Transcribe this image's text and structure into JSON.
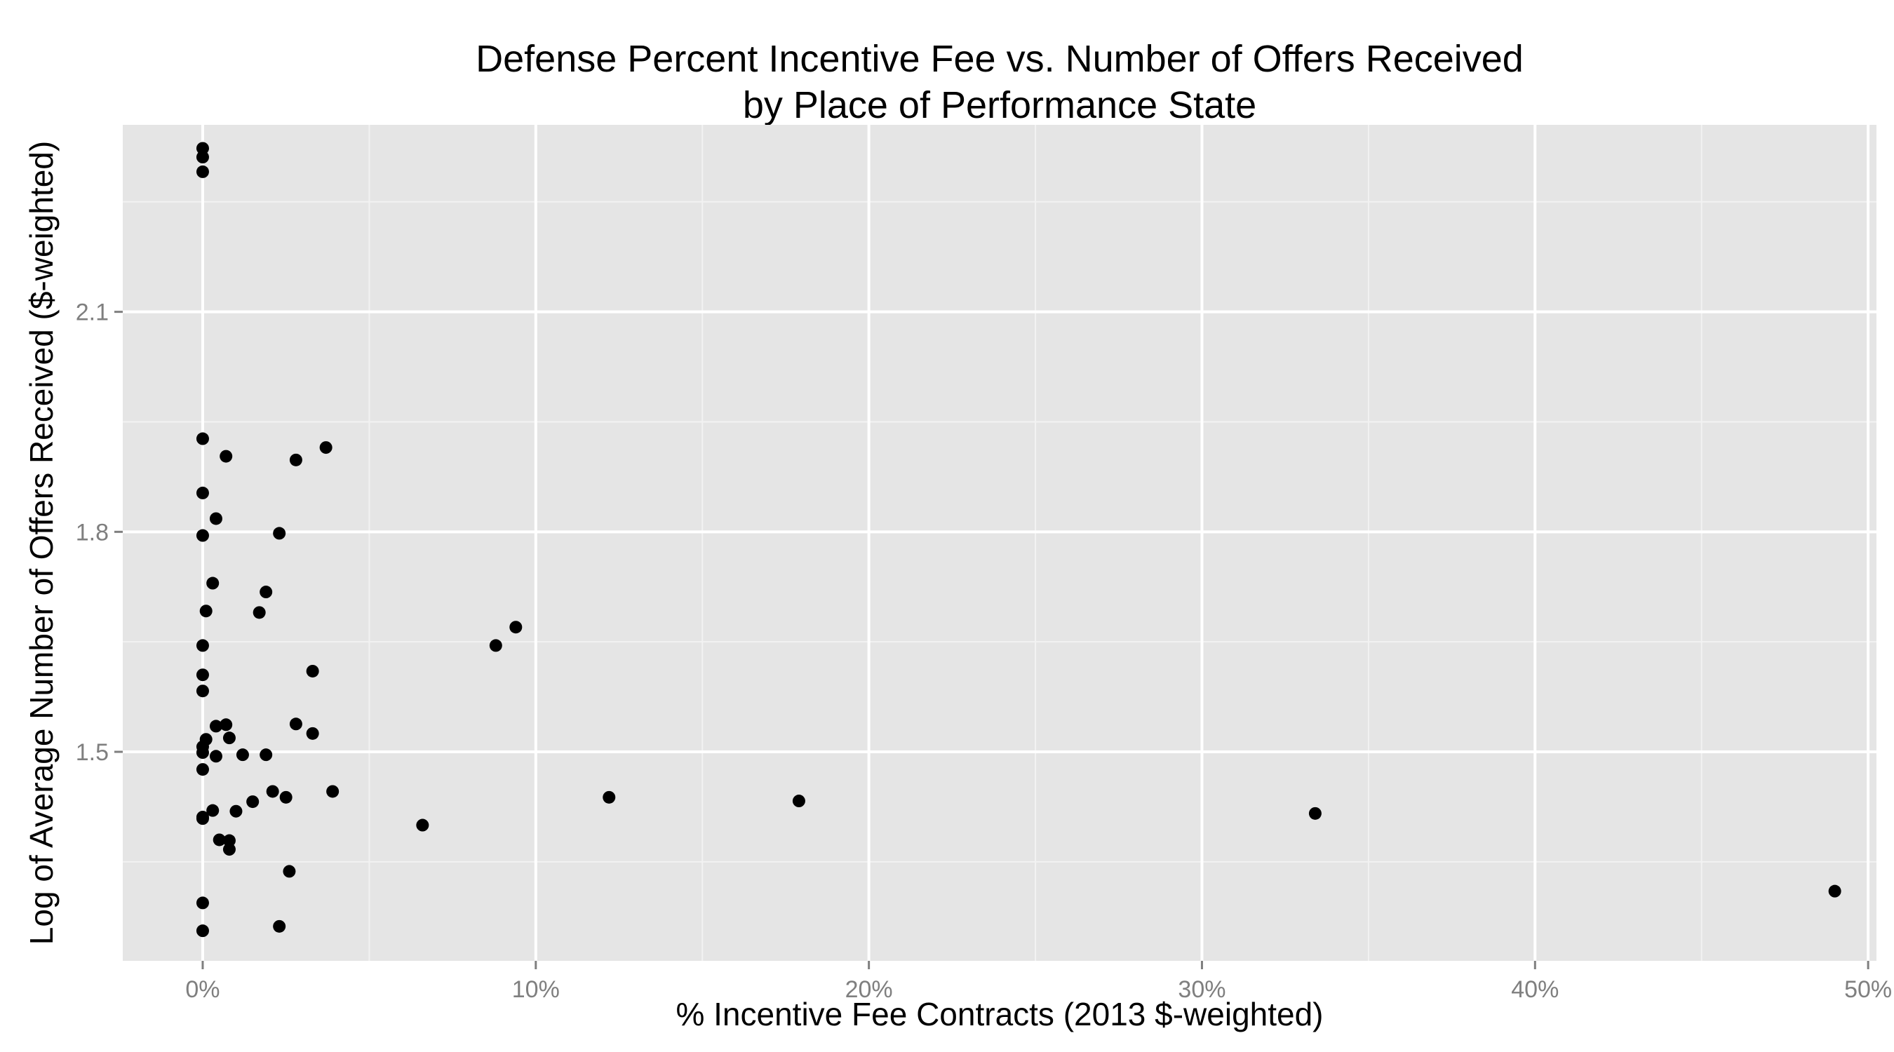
{
  "chart_data": {
    "type": "scatter",
    "title": "Defense Percent Incentive Fee vs. Number of Offers Received",
    "subtitle": "by Place of Performance State",
    "xlabel": "% Incentive Fee Contracts (2013 $-weighted)",
    "ylabel": "Log of Average Number of Offers Received ($-weighted)",
    "xlim": [
      -0.024,
      0.5025
    ],
    "ylim": [
      1.215,
      2.355
    ],
    "x_ticks": [
      0,
      0.1,
      0.2,
      0.3,
      0.4,
      0.5
    ],
    "x_tick_labels": [
      "0%",
      "10%",
      "20%",
      "30%",
      "40%",
      "50%"
    ],
    "y_ticks": [
      1.5,
      1.8,
      2.1
    ],
    "y_tick_labels": [
      "1.5",
      "1.8",
      "2.1"
    ],
    "grid": true,
    "background": "#e5e5e5",
    "point_color": "#000000",
    "points": [
      {
        "x": 0.0,
        "y": 2.323
      },
      {
        "x": 0.0,
        "y": 2.311
      },
      {
        "x": 0.0,
        "y": 2.291
      },
      {
        "x": 0.0,
        "y": 1.927
      },
      {
        "x": 0.0,
        "y": 1.853
      },
      {
        "x": 0.0,
        "y": 1.795
      },
      {
        "x": 0.0,
        "y": 1.645
      },
      {
        "x": 0.0,
        "y": 1.605
      },
      {
        "x": 0.0,
        "y": 1.583
      },
      {
        "x": 0.0,
        "y": 1.507
      },
      {
        "x": 0.0,
        "y": 1.499
      },
      {
        "x": 0.0,
        "y": 1.476
      },
      {
        "x": 0.0,
        "y": 1.411
      },
      {
        "x": 0.0,
        "y": 1.409
      },
      {
        "x": 0.0,
        "y": 1.294
      },
      {
        "x": 0.0,
        "y": 1.256
      },
      {
        "x": 0.001,
        "y": 1.517
      },
      {
        "x": 0.001,
        "y": 1.692
      },
      {
        "x": 0.003,
        "y": 1.73
      },
      {
        "x": 0.003,
        "y": 1.42
      },
      {
        "x": 0.004,
        "y": 1.818
      },
      {
        "x": 0.004,
        "y": 1.535
      },
      {
        "x": 0.004,
        "y": 1.494
      },
      {
        "x": 0.005,
        "y": 1.38
      },
      {
        "x": 0.007,
        "y": 1.903
      },
      {
        "x": 0.007,
        "y": 1.537
      },
      {
        "x": 0.008,
        "y": 1.519
      },
      {
        "x": 0.008,
        "y": 1.379
      },
      {
        "x": 0.008,
        "y": 1.367
      },
      {
        "x": 0.01,
        "y": 1.419
      },
      {
        "x": 0.012,
        "y": 1.496
      },
      {
        "x": 0.015,
        "y": 1.432
      },
      {
        "x": 0.017,
        "y": 1.69
      },
      {
        "x": 0.019,
        "y": 1.718
      },
      {
        "x": 0.019,
        "y": 1.496
      },
      {
        "x": 0.021,
        "y": 1.446
      },
      {
        "x": 0.023,
        "y": 1.798
      },
      {
        "x": 0.023,
        "y": 1.262
      },
      {
        "x": 0.025,
        "y": 1.438
      },
      {
        "x": 0.026,
        "y": 1.337
      },
      {
        "x": 0.028,
        "y": 1.898
      },
      {
        "x": 0.028,
        "y": 1.538
      },
      {
        "x": 0.033,
        "y": 1.61
      },
      {
        "x": 0.033,
        "y": 1.525
      },
      {
        "x": 0.037,
        "y": 1.915
      },
      {
        "x": 0.039,
        "y": 1.446
      },
      {
        "x": 0.066,
        "y": 1.4
      },
      {
        "x": 0.088,
        "y": 1.645
      },
      {
        "x": 0.094,
        "y": 1.67
      },
      {
        "x": 0.122,
        "y": 1.438
      },
      {
        "x": 0.179,
        "y": 1.433
      },
      {
        "x": 0.334,
        "y": 1.416
      },
      {
        "x": 0.49,
        "y": 1.31
      }
    ]
  }
}
